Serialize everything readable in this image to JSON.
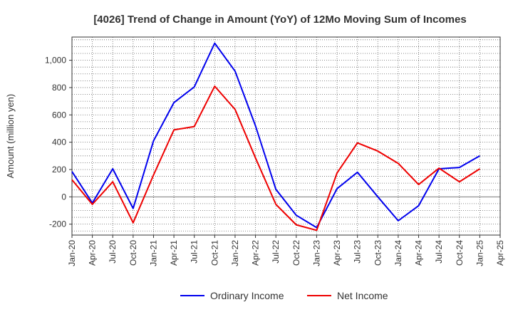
{
  "chart_data": {
    "type": "line",
    "title": "[4026]  Trend of Change in Amount (YoY) of 12Mo Moving Sum of Incomes",
    "xlabel": "",
    "ylabel": "Amount (million yen)",
    "ylim": [
      -280,
      1170
    ],
    "y_ticks": [
      -200,
      0,
      200,
      400,
      600,
      800,
      1000
    ],
    "y_tick_labels": [
      "-200",
      "0",
      "200",
      "400",
      "600",
      "800",
      "1,000"
    ],
    "x_tick_labels": [
      "Jan-20",
      "Apr-20",
      "Jul-20",
      "Oct-20",
      "Jan-21",
      "Apr-21",
      "Jul-21",
      "Oct-21",
      "Jan-22",
      "Apr-22",
      "Jul-22",
      "Oct-22",
      "Jan-23",
      "Apr-23",
      "Jul-23",
      "Oct-23",
      "Jan-24",
      "Apr-24",
      "Jul-24",
      "Oct-24",
      "Jan-25",
      "Apr-25"
    ],
    "grid": true,
    "legend_position": "bottom",
    "series": [
      {
        "name": "Ordinary Income",
        "color": "#0000ee",
        "values": [
          185,
          -45,
          205,
          -85,
          410,
          690,
          805,
          1125,
          920,
          520,
          55,
          -135,
          -225,
          60,
          180,
          0,
          -175,
          -65,
          205,
          215,
          300
        ]
      },
      {
        "name": "Net Income",
        "color": "#ee0000",
        "values": [
          125,
          -55,
          110,
          -190,
          160,
          490,
          515,
          810,
          640,
          285,
          -55,
          -205,
          -245,
          175,
          395,
          335,
          245,
          90,
          210,
          110,
          205
        ]
      }
    ]
  }
}
